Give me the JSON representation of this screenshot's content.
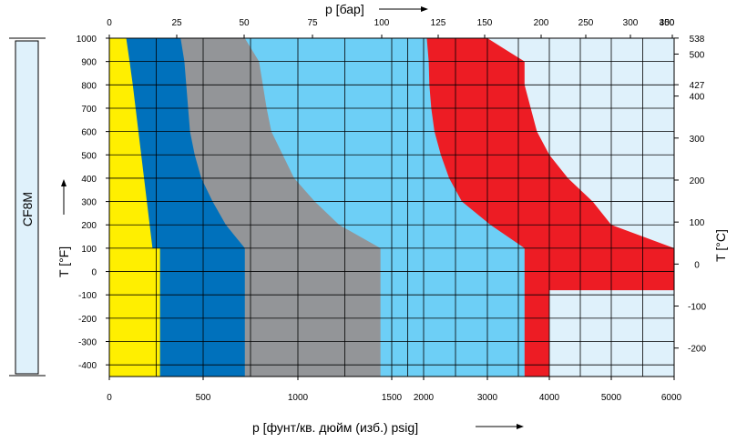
{
  "material_label": "CF8M",
  "chart_data": {
    "type": "area",
    "title": "",
    "x_bottom_label": "p [фунт/кв. дюйм (изб.) psig]",
    "x_top_label": "p [бар]",
    "y_left_label": "T [°F]",
    "y_right_label": "T [°C]",
    "x_ticks_bottom": [
      0,
      500,
      1000,
      1500,
      2000,
      3000,
      4000,
      5000,
      6000
    ],
    "x_ticks_top": [
      0,
      25,
      50,
      75,
      100,
      125,
      150,
      200,
      250,
      300,
      350,
      400
    ],
    "y_ticks_left": [
      1000,
      900,
      800,
      700,
      600,
      500,
      400,
      300,
      200,
      100,
      0,
      -100,
      -200,
      -300,
      -400
    ],
    "y_ticks_right": [
      538,
      500,
      427,
      400,
      300,
      200,
      100,
      0,
      -100,
      -200
    ],
    "xlim_psig": [
      0,
      6000
    ],
    "ylim_F": [
      -450,
      1000
    ],
    "grid": true,
    "colors": {
      "class150": "#ffef00",
      "class300": "#0071bc",
      "class600": "#939598",
      "class900": "#6dcff6",
      "class1500": "#ed1c24",
      "class2500": "#dff1fb"
    },
    "bands": [
      {
        "color_key": "class150",
        "boundary": [
          [
            -450,
            270
          ],
          [
            100,
            270
          ],
          [
            100,
            230
          ],
          [
            200,
            215
          ],
          [
            300,
            200
          ],
          [
            400,
            185
          ],
          [
            500,
            170
          ],
          [
            600,
            155
          ],
          [
            700,
            140
          ],
          [
            800,
            125
          ],
          [
            900,
            108
          ],
          [
            1000,
            90
          ]
        ]
      },
      {
        "color_key": "class300",
        "boundary": [
          [
            -450,
            720
          ],
          [
            100,
            720
          ],
          [
            200,
            620
          ],
          [
            300,
            550
          ],
          [
            400,
            490
          ],
          [
            500,
            455
          ],
          [
            600,
            430
          ],
          [
            700,
            420
          ],
          [
            800,
            410
          ],
          [
            900,
            400
          ],
          [
            1000,
            380
          ]
        ]
      },
      {
        "color_key": "class600",
        "boundary": [
          [
            -450,
            1440
          ],
          [
            100,
            1440
          ],
          [
            200,
            1220
          ],
          [
            300,
            1090
          ],
          [
            400,
            980
          ],
          [
            500,
            920
          ],
          [
            600,
            860
          ],
          [
            700,
            835
          ],
          [
            800,
            815
          ],
          [
            900,
            795
          ],
          [
            1000,
            720
          ]
        ]
      },
      {
        "color_key": "class900",
        "boundary": [
          [
            -450,
            3600
          ],
          [
            100,
            3600
          ],
          [
            200,
            3050
          ],
          [
            300,
            2600
          ],
          [
            400,
            2400
          ],
          [
            500,
            2270
          ],
          [
            600,
            2170
          ],
          [
            700,
            2120
          ],
          [
            800,
            2090
          ],
          [
            900,
            2080
          ],
          [
            1000,
            2050
          ]
        ]
      },
      {
        "color_key": "class1500",
        "boundary": [
          [
            -450,
            4000
          ],
          [
            -80,
            4000
          ],
          [
            -80,
            6000
          ],
          [
            0,
            6000
          ],
          [
            100,
            6000
          ],
          [
            200,
            5000
          ],
          [
            300,
            4700
          ],
          [
            400,
            4300
          ],
          [
            500,
            4000
          ],
          [
            600,
            3800
          ],
          [
            700,
            3700
          ],
          [
            800,
            3600
          ],
          [
            900,
            3600
          ],
          [
            950,
            3300
          ],
          [
            1000,
            3000
          ]
        ]
      }
    ]
  }
}
